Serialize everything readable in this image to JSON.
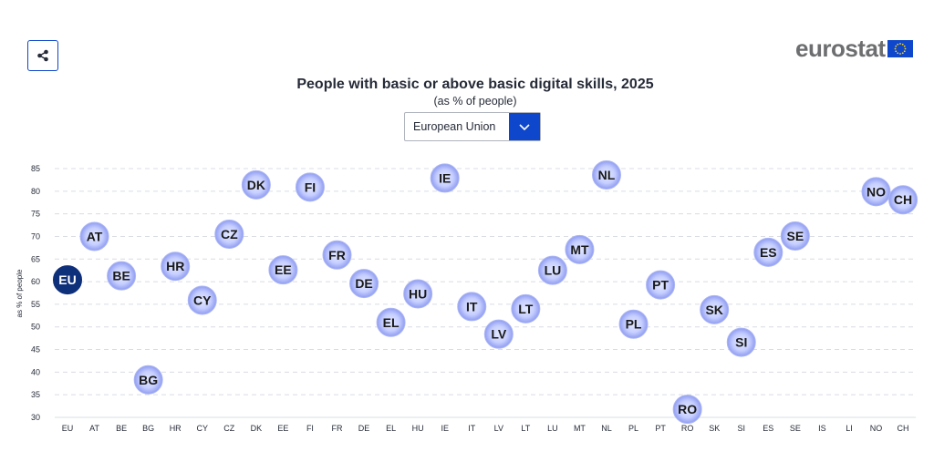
{
  "header": {
    "share_icon": "share-icon",
    "logo_text": "eurostat",
    "logo_icon": "eu-flag-icon"
  },
  "title": "People with basic or above basic digital skills, 2025",
  "subtitle": "(as % of people)",
  "geo_select": {
    "value": "European Union",
    "icon": "chevron-down-icon"
  },
  "colors": {
    "highlight": "#0e2f7a",
    "bubble_center": "#e4e9ff",
    "bubble_edge": "#8f9cf0"
  },
  "chart_data": {
    "type": "scatter",
    "title": "People with basic or above basic digital skills, 2025",
    "ylabel": "as % of people",
    "ylim": [
      30,
      85
    ],
    "yticks": [
      30,
      35,
      40,
      45,
      50,
      55,
      60,
      65,
      70,
      75,
      80,
      85
    ],
    "grid": true,
    "categories": [
      "EU",
      "AT",
      "BE",
      "BG",
      "HR",
      "CY",
      "CZ",
      "DK",
      "EE",
      "FI",
      "FR",
      "DE",
      "EL",
      "HU",
      "IE",
      "IT",
      "LV",
      "LT",
      "LU",
      "MT",
      "NL",
      "PL",
      "PT",
      "RO",
      "SK",
      "SI",
      "ES",
      "SE",
      "IS",
      "LI",
      "NO",
      "CH"
    ],
    "values": [
      60.4,
      70.0,
      61.3,
      38.3,
      63.4,
      55.9,
      70.5,
      81.4,
      62.6,
      80.9,
      65.9,
      59.6,
      51.0,
      57.3,
      82.9,
      54.5,
      48.4,
      54.0,
      62.5,
      67.1,
      83.6,
      50.6,
      59.3,
      31.8,
      53.8,
      46.6,
      66.5,
      70.1,
      null,
      null,
      79.9,
      78.1
    ],
    "highlight": "EU"
  }
}
